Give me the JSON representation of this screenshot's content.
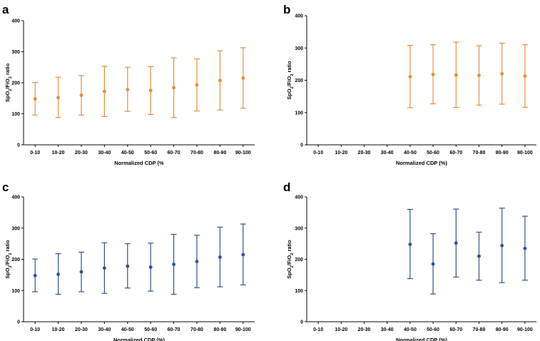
{
  "chart_data": [
    {
      "panel": "a",
      "type": "scatter",
      "error_bars": true,
      "color": "#E88A3A",
      "categories": [
        "0-10",
        "10-20",
        "20-30",
        "30-40",
        "40-50",
        "50-60",
        "60-70",
        "70-80",
        "80-90",
        "90-100"
      ],
      "series": [
        {
          "name": "SpO2/FiO2 ratio",
          "mean": [
            148,
            152,
            160,
            172,
            178,
            175,
            184,
            193,
            207,
            215
          ],
          "lower": [
            96,
            88,
            96,
            91,
            108,
            98,
            88,
            109,
            112,
            118
          ],
          "upper": [
            201,
            218,
            223,
            253,
            250,
            252,
            280,
            277,
            303,
            313
          ]
        }
      ],
      "xlabel": "Normalized CDP (%",
      "ylabel_parts": [
        "SpO",
        "2",
        "/FiO",
        "2",
        " ratio"
      ],
      "ylim": [
        0,
        400
      ],
      "yticks": [
        0,
        100,
        200,
        300,
        400
      ]
    },
    {
      "panel": "b",
      "type": "scatter",
      "error_bars": true,
      "color": "#E88A3A",
      "categories": [
        "0-10",
        "10-20",
        "20-30",
        "30-40",
        "40-50",
        "50-60",
        "60-70",
        "70-80",
        "80-90",
        "90-100"
      ],
      "series": [
        {
          "name": "SpO2/FiO2 ratio",
          "mean": [
            null,
            null,
            null,
            null,
            211,
            218,
            216,
            215,
            220,
            213
          ],
          "lower": [
            null,
            null,
            null,
            null,
            115,
            127,
            116,
            123,
            126,
            116
          ],
          "upper": [
            null,
            null,
            null,
            null,
            308,
            310,
            318,
            307,
            315,
            310
          ]
        }
      ],
      "xlabel": "Normalized CDP (%)",
      "ylabel_parts": [
        "SpO",
        "2",
        "/FiO",
        "2",
        " ratio"
      ],
      "ylim": [
        0,
        400
      ],
      "yticks": [
        0,
        100,
        200,
        300,
        400
      ]
    },
    {
      "panel": "c",
      "type": "scatter",
      "error_bars": true,
      "color": "#2B4E91",
      "categories": [
        "0-10",
        "10-20",
        "20-30",
        "30-40",
        "40-50",
        "50-60",
        "60-70",
        "70-80",
        "80-90",
        "90-100"
      ],
      "series": [
        {
          "name": "SpO2/FiO2 ratio",
          "mean": [
            148,
            152,
            160,
            172,
            178,
            175,
            184,
            193,
            207,
            215
          ],
          "lower": [
            96,
            88,
            96,
            91,
            108,
            98,
            88,
            109,
            112,
            118
          ],
          "upper": [
            201,
            218,
            223,
            253,
            250,
            252,
            280,
            277,
            303,
            313
          ]
        }
      ],
      "xlabel": "Normalized CDP (%)",
      "ylabel_parts": [
        "SpO",
        "2",
        "/FiO",
        "2",
        " ratio"
      ],
      "ylim": [
        0,
        400
      ],
      "yticks": [
        0,
        100,
        200,
        300,
        400
      ]
    },
    {
      "panel": "d",
      "type": "scatter",
      "error_bars": true,
      "color": "#2B4E91",
      "categories": [
        "0-10",
        "10-20",
        "20-30",
        "30-40",
        "40-50",
        "50-60",
        "60-70",
        "70-80",
        "80-90",
        "90-100"
      ],
      "series": [
        {
          "name": "SpO2/FiO2 ratio",
          "mean": [
            null,
            null,
            null,
            null,
            248,
            185,
            252,
            210,
            244,
            235
          ],
          "lower": [
            null,
            null,
            null,
            null,
            138,
            89,
            143,
            133,
            125,
            133
          ],
          "upper": [
            null,
            null,
            null,
            null,
            360,
            282,
            361,
            287,
            364,
            338
          ]
        }
      ],
      "xlabel": "Normalized CDP  (%)",
      "ylabel_parts": [
        "SpO",
        "2",
        "/FiO",
        "2",
        " ratio"
      ],
      "ylim": [
        0,
        400
      ],
      "yticks": [
        0,
        100,
        200,
        300,
        400
      ]
    }
  ]
}
